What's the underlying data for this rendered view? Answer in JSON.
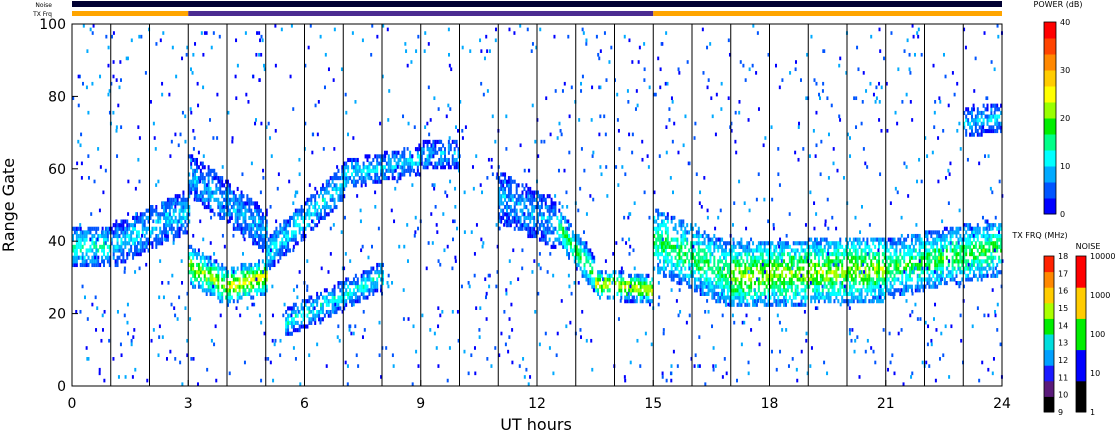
{
  "colors": {
    "power_scale": [
      "#0000ff",
      "#0055ff",
      "#00aaff",
      "#00ffff",
      "#00ff88",
      "#00ee00",
      "#99ff00",
      "#ffff00",
      "#ffcc00",
      "#ff8800",
      "#ff4400",
      "#ff0000"
    ],
    "noise_scale": [
      "#000000",
      "#0000ff",
      "#00ee00",
      "#ffcc00",
      "#ff0000"
    ],
    "tx_freq_scale": [
      "#000000",
      "#5a1a7a",
      "#1a1aff",
      "#00a0ff",
      "#00dddd",
      "#00ee00",
      "#aaff00",
      "#ffcc00",
      "#ff8800",
      "#ff2200"
    ],
    "tx_bar_orange": "#ffa500",
    "tx_bar_purple": "#4b2c91"
  },
  "header": {
    "noise_label": "Noise",
    "txfrq_label": "TX Frq"
  },
  "power_bar": {
    "title": "POWER (dB)",
    "ticks": [
      "40",
      "30",
      "20",
      "10",
      "0"
    ]
  },
  "txfreq_bar": {
    "title": "TX FRQ (MHz)",
    "ticks": [
      "18",
      "17",
      "16",
      "15",
      "14",
      "13",
      "12",
      "11",
      "10",
      "9"
    ]
  },
  "noise_bar": {
    "title": "NOISE",
    "ticks": [
      "10000",
      "1000",
      "100",
      "10",
      "1"
    ]
  },
  "chart_data": {
    "type": "heatmap",
    "xlabel": "UT hours",
    "ylabel": "Range Gate",
    "xlim": [
      0,
      24
    ],
    "ylim": [
      0,
      100
    ],
    "x_ticks": [
      "0",
      "3",
      "6",
      "9",
      "12",
      "15",
      "18",
      "21",
      "24"
    ],
    "y_ticks": [
      "0",
      "20",
      "40",
      "60",
      "80",
      "100"
    ],
    "scan_lines_ut": [
      1,
      2,
      3,
      4,
      5,
      6,
      7,
      8,
      9,
      10,
      11,
      12,
      13,
      14,
      15,
      16,
      17,
      18,
      19,
      20,
      21,
      22,
      23
    ],
    "tx_freq_segments": [
      {
        "start_ut": 0,
        "end_ut": 3,
        "color": "orange"
      },
      {
        "start_ut": 3,
        "end_ut": 15,
        "color": "purple"
      },
      {
        "start_ut": 15,
        "end_ut": 24,
        "color": "orange"
      }
    ],
    "echo_bands": [
      {
        "start_ut": 0.0,
        "end_ut": 1.0,
        "gate_start": 38,
        "gate_end": 38,
        "width": 9,
        "power_db": 14
      },
      {
        "start_ut": 1.0,
        "end_ut": 3.0,
        "gate_start": 38,
        "gate_end": 48,
        "width": 10,
        "power_db": 9
      },
      {
        "start_ut": 3.0,
        "end_ut": 4.0,
        "gate_start": 33,
        "gate_end": 27,
        "width": 9,
        "power_db": 22
      },
      {
        "start_ut": 4.0,
        "end_ut": 5.0,
        "gate_start": 27,
        "gate_end": 30,
        "width": 8,
        "power_db": 26
      },
      {
        "start_ut": 3.0,
        "end_ut": 5.0,
        "gate_start": 58,
        "gate_end": 42,
        "width": 10,
        "power_db": 8
      },
      {
        "start_ut": 5.0,
        "end_ut": 7.0,
        "gate_start": 36,
        "gate_end": 56,
        "width": 8,
        "power_db": 11
      },
      {
        "start_ut": 7.0,
        "end_ut": 9.0,
        "gate_start": 58,
        "gate_end": 62,
        "width": 6,
        "power_db": 10
      },
      {
        "start_ut": 9.0,
        "end_ut": 10.0,
        "gate_start": 63,
        "gate_end": 64,
        "width": 6,
        "power_db": 8
      },
      {
        "start_ut": 5.5,
        "end_ut": 8.0,
        "gate_start": 17,
        "gate_end": 30,
        "width": 6,
        "power_db": 12
      },
      {
        "start_ut": 11.0,
        "end_ut": 12.5,
        "gate_start": 52,
        "gate_end": 44,
        "width": 12,
        "power_db": 7
      },
      {
        "start_ut": 12.5,
        "end_ut": 13.5,
        "gate_start": 44,
        "gate_end": 30,
        "width": 8,
        "power_db": 18
      },
      {
        "start_ut": 13.5,
        "end_ut": 15.0,
        "gate_start": 28,
        "gate_end": 26,
        "width": 6,
        "power_db": 26
      },
      {
        "start_ut": 15.0,
        "end_ut": 17.0,
        "gate_start": 40,
        "gate_end": 30,
        "width": 16,
        "power_db": 17
      },
      {
        "start_ut": 17.0,
        "end_ut": 21.0,
        "gate_start": 30,
        "gate_end": 32,
        "width": 16,
        "power_db": 22
      },
      {
        "start_ut": 21.0,
        "end_ut": 24.0,
        "gate_start": 32,
        "gate_end": 38,
        "width": 14,
        "power_db": 18
      },
      {
        "start_ut": 23.0,
        "end_ut": 24.0,
        "gate_start": 72,
        "gate_end": 74,
        "width": 6,
        "power_db": 9
      }
    ]
  }
}
